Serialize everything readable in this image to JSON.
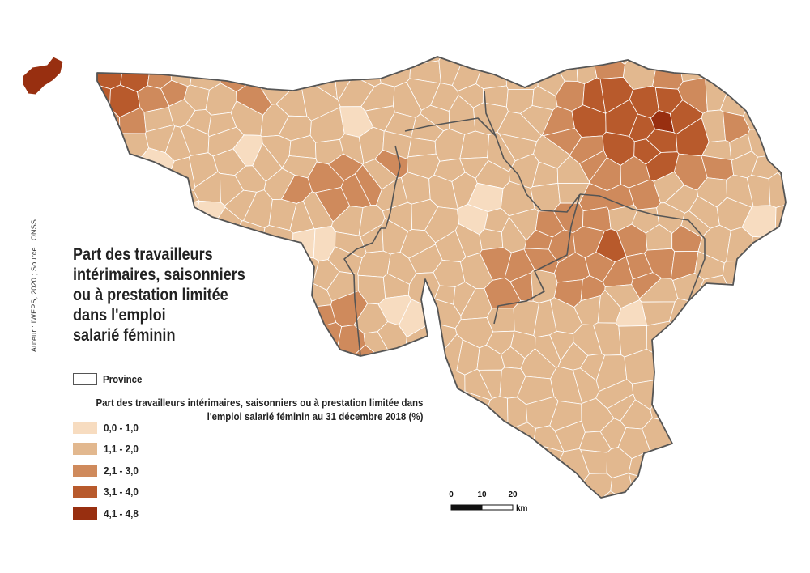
{
  "title": {
    "lines": [
      "Part des travailleurs",
      "intérimaires, saisonniers",
      "ou à prestation limitée",
      "dans l'emploi",
      "salarié féminin"
    ]
  },
  "credit": "Auteur : IWEPS, 2020 ; Source : ONSS",
  "legend": {
    "province_label": "Province",
    "class_title": "Part des travailleurs intérimaires, saisonniers ou à prestation limitée dans l'emploi salarié féminin au 31 décembre 2018 (%)",
    "classes": [
      {
        "label": "0,0 - 1,0",
        "color": "#f7dcc0"
      },
      {
        "label": "1,1 - 2,0",
        "color": "#e2b88f"
      },
      {
        "label": "2,1 - 3,0",
        "color": "#cf8a5c"
      },
      {
        "label": "3,1 - 4,0",
        "color": "#b85a2c"
      },
      {
        "label": "4,1 - 4,8",
        "color": "#982f10"
      }
    ]
  },
  "scalebar": {
    "ticks": [
      "0",
      "10",
      "20"
    ],
    "unit": "km"
  },
  "colors": {
    "border": "#ffffff",
    "province_border": "#555555"
  }
}
